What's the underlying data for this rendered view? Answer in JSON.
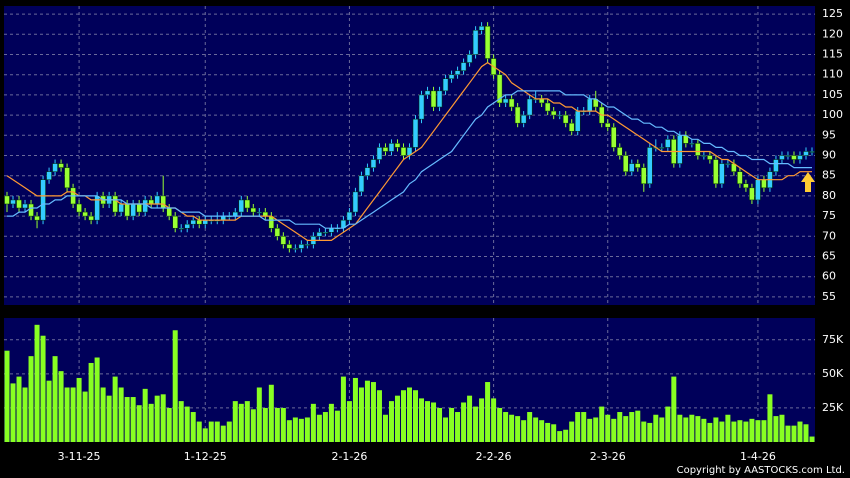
{
  "chart_data": [
    {
      "type": "candlestick",
      "up_color": "#33ccff",
      "down_color": "#99ff33",
      "grid": true,
      "ylim": [
        53,
        127
      ],
      "yticks": [
        55,
        60,
        65,
        70,
        75,
        80,
        85,
        90,
        95,
        100,
        105,
        110,
        115,
        120,
        125
      ],
      "open": [
        80,
        78,
        79,
        77,
        78,
        75,
        74,
        84,
        86,
        88,
        87,
        82,
        78,
        76,
        75,
        74,
        80,
        78,
        80,
        76,
        78,
        75,
        78,
        76,
        79,
        78,
        80,
        77,
        75,
        72,
        72,
        73,
        74,
        73,
        74,
        74,
        74,
        75,
        75,
        76,
        79,
        77,
        76,
        76,
        75,
        72,
        70,
        68,
        67,
        67,
        68,
        68,
        70,
        71,
        71,
        72,
        72,
        74,
        76,
        81,
        85,
        87,
        89,
        92,
        91,
        93,
        92,
        90,
        92,
        99,
        105,
        106,
        102,
        106,
        109,
        110,
        111,
        113,
        115,
        121,
        122,
        114,
        110,
        103,
        104,
        102,
        98,
        100,
        104,
        104,
        103,
        101,
        100,
        100,
        98,
        96,
        101,
        101,
        104,
        102,
        98,
        97,
        92,
        90,
        86,
        88,
        87,
        83,
        92,
        92,
        92,
        94,
        88,
        95,
        93,
        93,
        90,
        90,
        89,
        83,
        88,
        88,
        86,
        83,
        82,
        79,
        84,
        82,
        86,
        89,
        90,
        90,
        89,
        90,
        91
      ],
      "high": [
        81,
        80,
        80,
        79,
        79,
        76,
        85,
        87,
        89,
        89,
        88,
        83,
        79,
        77,
        76,
        81,
        81,
        81,
        81,
        79,
        79,
        79,
        79,
        80,
        80,
        81,
        85,
        78,
        76,
        73,
        74,
        75,
        75,
        75,
        75,
        76,
        76,
        76,
        77,
        80,
        80,
        78,
        77,
        77,
        76,
        73,
        71,
        69,
        68,
        69,
        69,
        71,
        72,
        72,
        73,
        73,
        75,
        77,
        82,
        86,
        88,
        90,
        93,
        93,
        94,
        94,
        93,
        93,
        100,
        106,
        107,
        107,
        107,
        110,
        111,
        112,
        114,
        116,
        122,
        123,
        123,
        115,
        111,
        105,
        105,
        103,
        101,
        105,
        106,
        105,
        104,
        102,
        101,
        101,
        99,
        102,
        102,
        105,
        106,
        103,
        99,
        98,
        93,
        91,
        89,
        89,
        88,
        93,
        94,
        93,
        95,
        95,
        96,
        96,
        94,
        94,
        91,
        91,
        90,
        89,
        89,
        89,
        87,
        84,
        83,
        85,
        85,
        87,
        90,
        91,
        91,
        91,
        91,
        92,
        92
      ],
      "low": [
        76,
        77,
        76,
        76,
        74,
        72,
        73,
        83,
        85,
        86,
        81,
        77,
        75,
        74,
        73,
        73,
        77,
        77,
        75,
        75,
        74,
        74,
        75,
        75,
        77,
        77,
        76,
        74,
        71,
        71,
        71,
        72,
        72,
        72,
        73,
        73,
        73,
        74,
        74,
        75,
        76,
        75,
        75,
        74,
        71,
        69,
        67,
        66,
        66,
        66,
        67,
        67,
        69,
        70,
        70,
        71,
        71,
        73,
        75,
        80,
        84,
        86,
        88,
        90,
        90,
        91,
        89,
        89,
        91,
        98,
        104,
        101,
        101,
        105,
        108,
        109,
        110,
        112,
        114,
        120,
        113,
        109,
        102,
        102,
        101,
        97,
        97,
        99,
        103,
        102,
        100,
        99,
        99,
        97,
        95,
        95,
        100,
        100,
        101,
        97,
        96,
        91,
        89,
        85,
        85,
        86,
        81,
        82,
        91,
        91,
        91,
        87,
        87,
        92,
        92,
        89,
        89,
        88,
        82,
        82,
        87,
        85,
        82,
        81,
        78,
        78,
        81,
        81,
        85,
        88,
        89,
        88,
        88,
        89,
        90
      ],
      "close": [
        78,
        79,
        77,
        78,
        75,
        74,
        84,
        86,
        88,
        87,
        82,
        78,
        76,
        75,
        74,
        80,
        78,
        80,
        76,
        78,
        75,
        78,
        76,
        79,
        78,
        80,
        77,
        75,
        72,
        72,
        73,
        74,
        73,
        74,
        74,
        74,
        75,
        75,
        76,
        79,
        77,
        76,
        76,
        75,
        72,
        70,
        68,
        67,
        67,
        68,
        68,
        70,
        71,
        71,
        72,
        72,
        74,
        76,
        81,
        85,
        87,
        89,
        92,
        91,
        93,
        92,
        90,
        92,
        99,
        105,
        106,
        102,
        106,
        109,
        110,
        111,
        113,
        115,
        121,
        122,
        114,
        110,
        103,
        104,
        102,
        98,
        100,
        104,
        104,
        103,
        101,
        100,
        100,
        98,
        96,
        101,
        101,
        104,
        102,
        98,
        97,
        92,
        90,
        86,
        88,
        87,
        83,
        92,
        92,
        92,
        94,
        88,
        95,
        93,
        93,
        90,
        90,
        89,
        83,
        88,
        88,
        86,
        83,
        82,
        79,
        84,
        82,
        86,
        89,
        90,
        90,
        89,
        90,
        91,
        91
      ],
      "lines": [
        {
          "color": "#ff9933",
          "values": [
            85,
            84,
            83,
            82,
            81,
            80,
            80,
            80,
            80,
            80,
            81,
            81,
            80,
            80,
            79,
            79,
            79,
            79,
            79,
            78,
            78,
            78,
            78,
            78,
            78,
            78,
            78,
            77,
            77,
            76,
            75,
            75,
            74,
            74,
            74,
            74,
            74,
            74,
            74,
            75,
            75,
            75,
            75,
            75,
            75,
            74,
            73,
            72,
            71,
            70,
            69,
            69,
            69,
            69,
            69,
            70,
            71,
            72,
            73,
            75,
            77,
            79,
            81,
            83,
            85,
            87,
            89,
            90,
            91,
            92,
            94,
            96,
            98,
            100,
            102,
            104,
            106,
            108,
            110,
            112,
            113,
            112,
            111,
            110,
            108,
            107,
            106,
            105,
            104,
            104,
            104,
            103,
            103,
            102,
            102,
            101,
            101,
            101,
            101,
            100,
            100,
            99,
            98,
            97,
            96,
            95,
            94,
            93,
            92,
            91,
            91,
            91,
            91,
            91,
            91,
            91,
            91,
            91,
            90,
            89,
            89,
            88,
            87,
            86,
            85,
            84,
            84,
            84,
            84,
            84,
            85,
            85,
            86,
            86,
            86
          ]
        },
        {
          "color": "#66bbff",
          "values": [
            75,
            75,
            76,
            76,
            77,
            77,
            78,
            78,
            79,
            79,
            80,
            80,
            80,
            80,
            80,
            80,
            79,
            79,
            79,
            79,
            78,
            78,
            78,
            78,
            77,
            77,
            77,
            77,
            77,
            76,
            76,
            76,
            76,
            75,
            75,
            75,
            75,
            75,
            75,
            75,
            75,
            75,
            75,
            74,
            74,
            74,
            74,
            74,
            73,
            73,
            73,
            73,
            73,
            72,
            72,
            72,
            72,
            73,
            73,
            74,
            75,
            76,
            77,
            78,
            79,
            80,
            81,
            83,
            84,
            86,
            87,
            88,
            89,
            90,
            91,
            93,
            95,
            97,
            99,
            100,
            102,
            103,
            104,
            105,
            105,
            106,
            106,
            106,
            106,
            106,
            106,
            106,
            106,
            105,
            105,
            105,
            105,
            104,
            104,
            103,
            102,
            102,
            101,
            100,
            99,
            99,
            98,
            98,
            97,
            97,
            96,
            96,
            95,
            95,
            94,
            94,
            93,
            93,
            92,
            92,
            91,
            91,
            90,
            90,
            89,
            89,
            89,
            88,
            88,
            88,
            88,
            87,
            87,
            87,
            87
          ]
        }
      ]
    },
    {
      "type": "bar",
      "color": "#88ff22",
      "grid": true,
      "ylim": [
        0,
        91000
      ],
      "yticks": [
        {
          "value": 25000,
          "label": "25K"
        },
        {
          "value": 50000,
          "label": "50K"
        },
        {
          "value": 75000,
          "label": "75K"
        }
      ],
      "categories": [
        null,
        null,
        null,
        null,
        null,
        null,
        null,
        null,
        null,
        null,
        null,
        null,
        "3-11-25",
        null,
        null,
        null,
        null,
        null,
        null,
        null,
        null,
        null,
        null,
        null,
        null,
        null,
        null,
        null,
        null,
        null,
        null,
        null,
        null,
        "1-12-25",
        null,
        null,
        null,
        null,
        null,
        null,
        null,
        null,
        null,
        null,
        null,
        null,
        null,
        null,
        null,
        null,
        null,
        null,
        null,
        null,
        null,
        null,
        null,
        "2-1-26",
        null,
        null,
        null,
        null,
        null,
        null,
        null,
        null,
        null,
        null,
        null,
        null,
        null,
        null,
        null,
        null,
        null,
        null,
        null,
        null,
        null,
        null,
        null,
        "2-2-26",
        null,
        null,
        null,
        null,
        null,
        null,
        null,
        null,
        null,
        null,
        null,
        null,
        null,
        null,
        null,
        null,
        null,
        null,
        "2-3-26",
        null,
        null,
        null,
        null,
        null,
        null,
        null,
        null,
        null,
        null,
        null,
        null,
        null,
        null,
        null,
        null,
        null,
        null,
        null,
        null,
        null,
        null,
        null,
        null,
        "1-4-26",
        null,
        null,
        null,
        null,
        null,
        null,
        null,
        null,
        null
      ],
      "values": [
        67000,
        43000,
        48000,
        40000,
        63000,
        86000,
        78000,
        45000,
        63000,
        52000,
        40000,
        40000,
        47000,
        37000,
        58000,
        62000,
        40000,
        34000,
        48000,
        40000,
        33000,
        33000,
        27000,
        39000,
        28000,
        34000,
        35000,
        25000,
        82000,
        30000,
        26000,
        22000,
        15000,
        10000,
        15000,
        15000,
        12000,
        15000,
        30000,
        28000,
        30000,
        24000,
        40000,
        25000,
        42000,
        25000,
        25000,
        16000,
        18000,
        17000,
        18000,
        28000,
        20000,
        22000,
        28000,
        23000,
        48000,
        30000,
        47000,
        40000,
        45000,
        44000,
        38000,
        20000,
        30000,
        34000,
        38000,
        40000,
        38000,
        32000,
        30000,
        29000,
        25000,
        18000,
        25000,
        22000,
        29000,
        34000,
        26000,
        32000,
        44000,
        32000,
        25000,
        22000,
        20000,
        19000,
        16000,
        22000,
        18000,
        16000,
        14000,
        13000,
        8000,
        9000,
        15000,
        22000,
        22000,
        17000,
        18000,
        26000,
        20000,
        17000,
        22000,
        19000,
        22000,
        23000,
        15000,
        14000,
        20000,
        18000,
        26000,
        48000,
        20000,
        18000,
        20000,
        19000,
        17000,
        14000,
        18000,
        15000,
        20000,
        15000,
        16000,
        15000,
        17000,
        16000,
        16000,
        35000,
        19000,
        20000,
        12000,
        12000,
        15000,
        13000,
        4000
      ]
    }
  ],
  "copyright": "Copyright by AASTOCKS.com Ltd."
}
